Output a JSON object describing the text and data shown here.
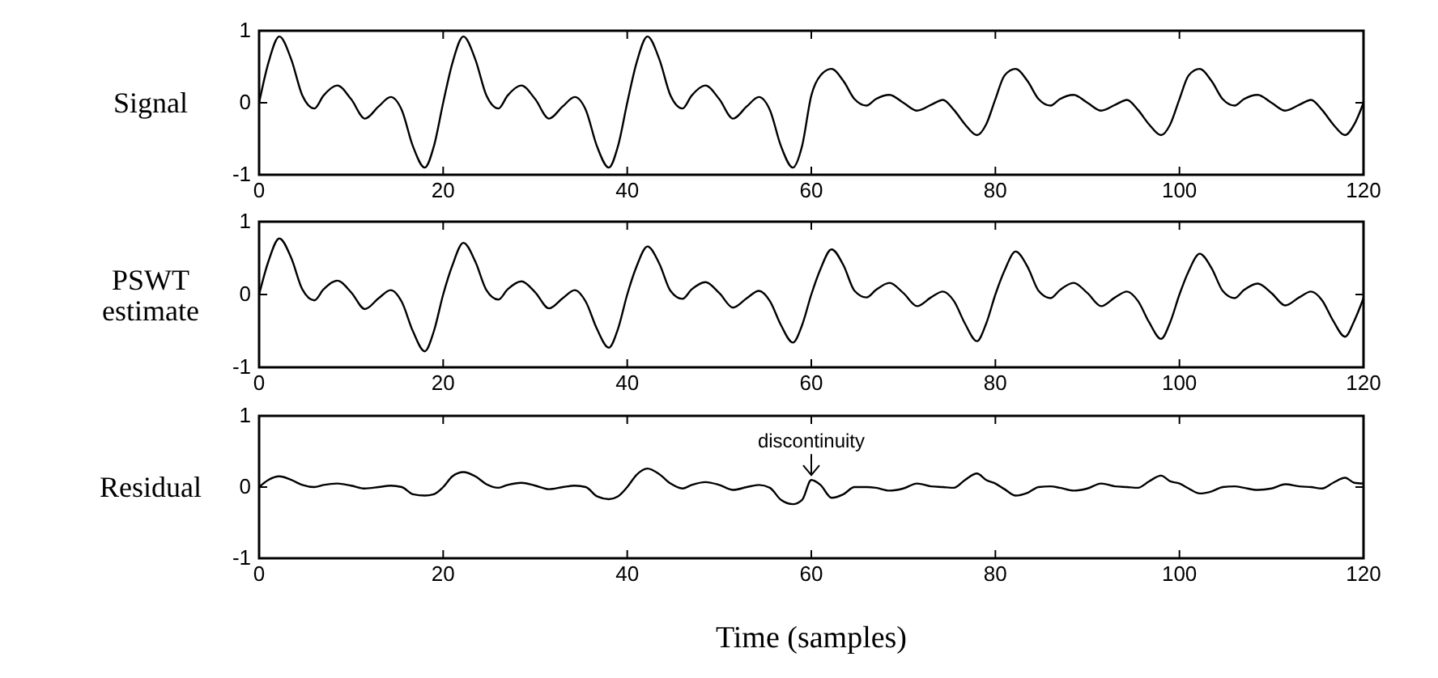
{
  "chart_data": [
    {
      "type": "line",
      "ylabel": "Signal",
      "xlim": [
        0,
        120
      ],
      "ylim": [
        -1,
        1
      ],
      "xticks": [
        0,
        20,
        40,
        60,
        80,
        100,
        120
      ],
      "yticks": [
        -1,
        0,
        1
      ],
      "x": [
        0,
        1,
        2.2,
        3.5,
        4.7,
        6,
        7,
        8.5,
        10,
        11.5,
        13,
        14.3,
        15.5,
        16.7,
        18,
        19,
        20,
        21,
        22.2,
        23.5,
        24.7,
        26,
        27,
        28.5,
        30,
        31.5,
        33,
        34.3,
        35.5,
        36.7,
        38,
        39,
        40,
        41,
        42.2,
        43.5,
        44.7,
        46,
        47,
        48.5,
        50,
        51.5,
        53,
        54.3,
        55.5,
        56.7,
        58,
        59,
        60,
        61,
        62.2,
        63.5,
        64.7,
        66,
        67,
        68.5,
        70,
        71.5,
        73,
        74.3,
        75.5,
        76.7,
        78,
        79,
        80,
        81,
        82.2,
        83.5,
        84.7,
        86,
        87,
        88.5,
        90,
        91.5,
        93,
        94.3,
        95.5,
        96.7,
        98,
        99,
        100,
        101,
        102.2,
        103.5,
        104.7,
        106,
        107,
        108.5,
        110,
        111.5,
        113,
        114.3,
        115.5,
        116.7,
        118,
        119,
        120
      ],
      "series": [
        {
          "color": "#000000",
          "values": [
            0,
            0.55,
            0.92,
            0.6,
            0.1,
            -0.08,
            0.1,
            0.24,
            0.05,
            -0.22,
            -0.05,
            0.08,
            -0.1,
            -0.6,
            -0.9,
            -0.6,
            0,
            0.55,
            0.92,
            0.6,
            0.1,
            -0.08,
            0.1,
            0.24,
            0.05,
            -0.22,
            -0.05,
            0.08,
            -0.1,
            -0.6,
            -0.9,
            -0.6,
            0,
            0.55,
            0.92,
            0.6,
            0.1,
            -0.08,
            0.1,
            0.24,
            0.05,
            -0.22,
            -0.05,
            0.08,
            -0.1,
            -0.6,
            -0.9,
            -0.6,
            0.1,
            0.38,
            0.47,
            0.3,
            0.05,
            -0.04,
            0.05,
            0.11,
            0,
            -0.11,
            -0.03,
            0.04,
            -0.1,
            -0.3,
            -0.45,
            -0.3,
            0.05,
            0.38,
            0.47,
            0.3,
            0.05,
            -0.04,
            0.05,
            0.11,
            0,
            -0.11,
            -0.03,
            0.04,
            -0.1,
            -0.3,
            -0.45,
            -0.3,
            0.05,
            0.38,
            0.47,
            0.3,
            0.05,
            -0.04,
            0.05,
            0.11,
            0,
            -0.11,
            -0.03,
            0.04,
            -0.1,
            -0.3,
            -0.45,
            -0.3,
            0
          ]
        }
      ]
    },
    {
      "type": "line",
      "ylabel": "PSWT estimate",
      "xlim": [
        0,
        120
      ],
      "ylim": [
        -1,
        1
      ],
      "xticks": [
        0,
        20,
        40,
        60,
        80,
        100,
        120
      ],
      "yticks": [
        -1,
        0,
        1
      ],
      "x": [
        0,
        1,
        2.2,
        3.5,
        4.7,
        6,
        7,
        8.5,
        10,
        11.5,
        13,
        14.3,
        15.5,
        16.7,
        18,
        19,
        20,
        21,
        22.2,
        23.5,
        24.7,
        26,
        27,
        28.5,
        30,
        31.5,
        33,
        34.3,
        35.5,
        36.7,
        38,
        39,
        40,
        41,
        42.2,
        43.5,
        44.7,
        46,
        47,
        48.5,
        50,
        51.5,
        53,
        54.3,
        55.5,
        56.7,
        58,
        59,
        60,
        61,
        62.2,
        63.5,
        64.7,
        66,
        67,
        68.5,
        70,
        71.5,
        73,
        74.3,
        75.5,
        76.7,
        78,
        79,
        80,
        81,
        82.2,
        83.5,
        84.7,
        86,
        87,
        88.5,
        90,
        91.5,
        93,
        94.3,
        95.5,
        96.7,
        98,
        99,
        100,
        101,
        102.2,
        103.5,
        104.7,
        106,
        107,
        108.5,
        110,
        111.5,
        113,
        114.3,
        115.5,
        116.7,
        118,
        119,
        120
      ],
      "series": [
        {
          "color": "#000000",
          "values": [
            0,
            0.45,
            0.77,
            0.5,
            0.07,
            -0.08,
            0.07,
            0.19,
            0.03,
            -0.2,
            -0.05,
            0.06,
            -0.1,
            -0.5,
            -0.78,
            -0.5,
            0,
            0.4,
            0.71,
            0.45,
            0.06,
            -0.07,
            0.07,
            0.18,
            0.03,
            -0.19,
            -0.05,
            0.06,
            -0.1,
            -0.47,
            -0.73,
            -0.47,
            0,
            0.38,
            0.66,
            0.42,
            0.05,
            -0.06,
            0.07,
            0.17,
            0.02,
            -0.18,
            -0.05,
            0.05,
            -0.09,
            -0.42,
            -0.66,
            -0.42,
            0,
            0.35,
            0.62,
            0.4,
            0.05,
            -0.04,
            0.06,
            0.16,
            0.02,
            -0.16,
            -0.04,
            0.04,
            -0.09,
            -0.4,
            -0.64,
            -0.4,
            0,
            0.33,
            0.59,
            0.38,
            0.05,
            -0.05,
            0.06,
            0.16,
            0.02,
            -0.16,
            -0.04,
            0.04,
            -0.09,
            -0.38,
            -0.61,
            -0.38,
            0,
            0.32,
            0.56,
            0.36,
            0.05,
            -0.05,
            0.06,
            0.15,
            0.02,
            -0.15,
            -0.04,
            0.04,
            -0.08,
            -0.36,
            -0.58,
            -0.36,
            -0.05
          ]
        }
      ]
    },
    {
      "type": "line",
      "ylabel": "Residual",
      "xlabel": "Time (samples)",
      "xlim": [
        0,
        120
      ],
      "ylim": [
        -1,
        1
      ],
      "xticks": [
        0,
        20,
        40,
        60,
        80,
        100,
        120
      ],
      "yticks": [
        -1,
        0,
        1
      ],
      "annotations": [
        {
          "text": "discontinuity",
          "x": 60,
          "y": 0.1
        }
      ],
      "x": [
        0,
        1,
        2.2,
        3.5,
        4.7,
        6,
        7,
        8.5,
        10,
        11.5,
        13,
        14.3,
        15.5,
        16.7,
        18,
        19,
        20,
        21,
        22.2,
        23.5,
        24.7,
        26,
        27,
        28.5,
        30,
        31.5,
        33,
        34.3,
        35.5,
        36.7,
        38,
        39,
        40,
        41,
        42.2,
        43.5,
        44.7,
        46,
        47,
        48.5,
        50,
        51.5,
        53,
        54.3,
        55.5,
        56.7,
        58,
        59,
        60,
        61,
        62.2,
        63.5,
        64.7,
        66,
        67,
        68.5,
        70,
        71.5,
        73,
        74.3,
        75.5,
        76.7,
        78,
        79,
        80,
        81,
        82.2,
        83.5,
        84.7,
        86,
        87,
        88.5,
        90,
        91.5,
        93,
        94.3,
        95.5,
        96.7,
        98,
        99,
        100,
        101,
        102.2,
        103.5,
        104.7,
        106,
        107,
        108.5,
        110,
        111.5,
        113,
        114.3,
        115.5,
        116.7,
        118,
        119,
        120
      ],
      "series": [
        {
          "color": "#000000",
          "values": [
            0,
            0.1,
            0.15,
            0.1,
            0.03,
            0,
            0.03,
            0.05,
            0.02,
            -0.02,
            0,
            0.02,
            0,
            -0.1,
            -0.12,
            -0.1,
            0,
            0.15,
            0.21,
            0.15,
            0.04,
            -0.01,
            0.03,
            0.06,
            0.02,
            -0.03,
            0,
            0.02,
            0,
            -0.13,
            -0.17,
            -0.13,
            0,
            0.17,
            0.26,
            0.18,
            0.05,
            -0.02,
            0.03,
            0.07,
            0.03,
            -0.04,
            0,
            0.03,
            -0.01,
            -0.18,
            -0.24,
            -0.18,
            0.1,
            0.03,
            -0.15,
            -0.1,
            0,
            0,
            -0.01,
            -0.05,
            -0.02,
            0.05,
            0.01,
            0,
            -0.01,
            0.1,
            0.19,
            0.1,
            0.05,
            -0.03,
            -0.12,
            -0.08,
            0,
            0.01,
            -0.01,
            -0.05,
            -0.02,
            0.05,
            0.01,
            0,
            -0.01,
            0.08,
            0.16,
            0.08,
            0.05,
            -0.02,
            -0.09,
            -0.06,
            0,
            0.01,
            -0.01,
            -0.04,
            -0.02,
            0.04,
            0.01,
            0,
            -0.02,
            0.06,
            0.13,
            0.06,
            0.05
          ]
        }
      ]
    }
  ]
}
